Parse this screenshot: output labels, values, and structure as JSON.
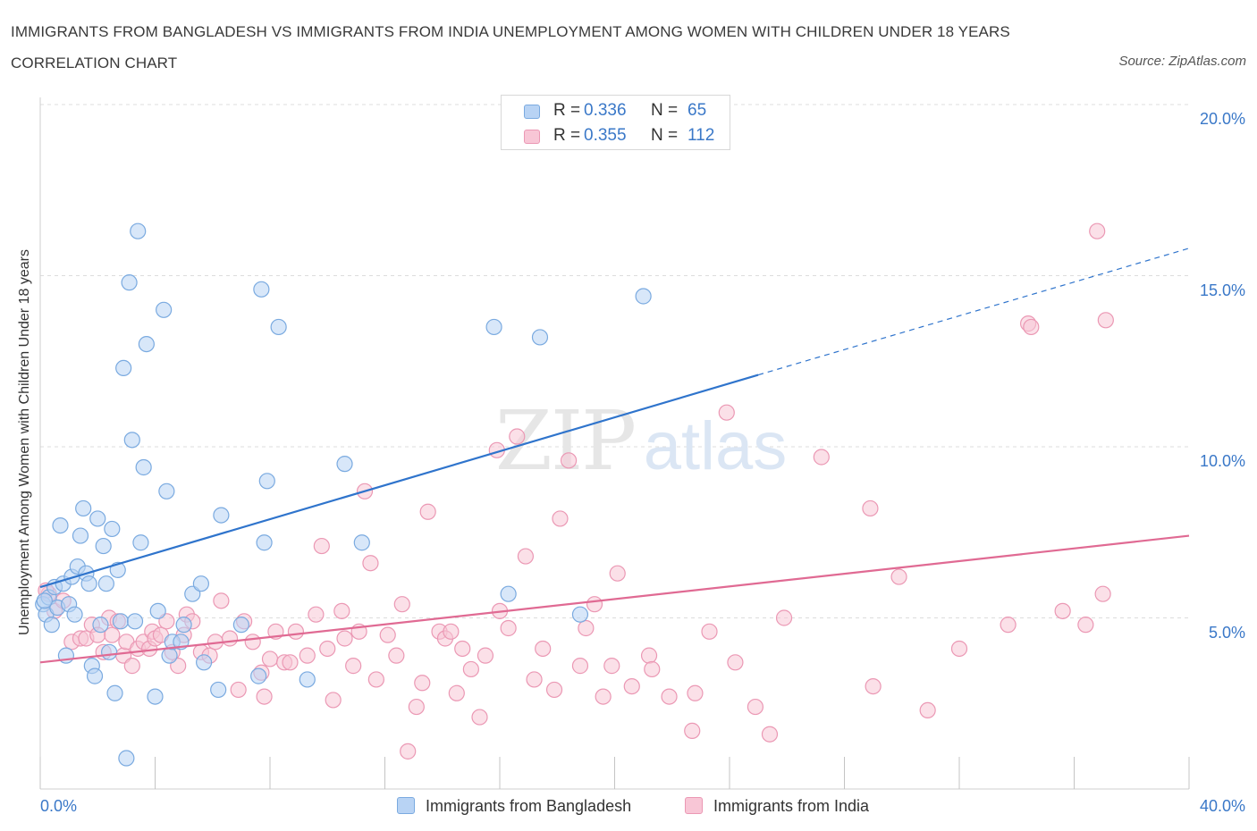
{
  "title": "IMMIGRANTS FROM BANGLADESH VS IMMIGRANTS FROM INDIA UNEMPLOYMENT AMONG WOMEN WITH CHILDREN UNDER 18 YEARS CORRELATION CHART",
  "source": "Source: ZipAtlas.com",
  "watermark": {
    "zip": "ZIP",
    "atlas": "atlas"
  },
  "legend": {
    "rows": [
      {
        "r_label": "R =",
        "r_value": "0.336",
        "n_label": "N =",
        "n_value": "65"
      },
      {
        "r_label": "R =",
        "r_value": "0.355",
        "n_label": "N =",
        "n_value": "112"
      }
    ]
  },
  "colors": {
    "bangladesh_fill": "#b8d3f4",
    "bangladesh_stroke": "#7aaae0",
    "bangladesh_line": "#2f74cc",
    "india_fill": "#f8c6d6",
    "india_stroke": "#eb98b4",
    "india_line": "#e06a93",
    "value_text": "#3a78c8",
    "grid": "#dcdcdc"
  },
  "chart_data": {
    "type": "scatter",
    "xlabel": "",
    "ylabel": "Unemployment Among Women with Children Under 18 years",
    "xlim": [
      0,
      40
    ],
    "ylim": [
      0,
      20
    ],
    "x_tick_labels": [
      "0.0%",
      "40.0%"
    ],
    "y_ticks": [
      5,
      10,
      15,
      20
    ],
    "y_tick_labels": [
      "5.0%",
      "10.0%",
      "15.0%",
      "20.0%"
    ],
    "grid": "horizontal dashed",
    "legend_placement": "top-center",
    "series": [
      {
        "name": "Immigrants from Bangladesh",
        "R": 0.336,
        "N": 65,
        "trend": {
          "x0": 0,
          "y0": 5.9,
          "x1": 25,
          "y1": 12.1,
          "dashed_to_x": 40,
          "dashed_to_y": 15.8
        },
        "points": [
          [
            0.1,
            5.4
          ],
          [
            0.2,
            5.1
          ],
          [
            0.3,
            5.6
          ],
          [
            0.4,
            4.8
          ],
          [
            0.5,
            5.9
          ],
          [
            0.6,
            5.3
          ],
          [
            0.7,
            7.7
          ],
          [
            0.8,
            6.0
          ],
          [
            0.9,
            3.9
          ],
          [
            1.0,
            5.4
          ],
          [
            1.1,
            6.2
          ],
          [
            1.2,
            5.1
          ],
          [
            1.3,
            6.5
          ],
          [
            1.4,
            7.4
          ],
          [
            1.5,
            8.2
          ],
          [
            1.6,
            6.3
          ],
          [
            1.7,
            6.0
          ],
          [
            1.8,
            3.6
          ],
          [
            1.9,
            3.3
          ],
          [
            2.0,
            7.9
          ],
          [
            2.1,
            4.8
          ],
          [
            2.2,
            7.1
          ],
          [
            2.3,
            6.0
          ],
          [
            2.4,
            4.0
          ],
          [
            2.5,
            7.6
          ],
          [
            2.6,
            2.8
          ],
          [
            2.7,
            6.4
          ],
          [
            2.8,
            4.9
          ],
          [
            2.9,
            12.3
          ],
          [
            3.0,
            0.9
          ],
          [
            3.1,
            14.8
          ],
          [
            3.2,
            10.2
          ],
          [
            3.3,
            4.9
          ],
          [
            3.4,
            16.3
          ],
          [
            3.5,
            7.2
          ],
          [
            3.6,
            9.4
          ],
          [
            3.7,
            13.0
          ],
          [
            4.0,
            2.7
          ],
          [
            4.1,
            5.2
          ],
          [
            4.3,
            14.0
          ],
          [
            4.4,
            8.7
          ],
          [
            4.5,
            3.9
          ],
          [
            4.6,
            4.3
          ],
          [
            5.0,
            4.8
          ],
          [
            5.3,
            5.7
          ],
          [
            5.6,
            6.0
          ],
          [
            5.7,
            3.7
          ],
          [
            6.2,
            2.9
          ],
          [
            6.3,
            8.0
          ],
          [
            7.0,
            4.8
          ],
          [
            7.6,
            3.3
          ],
          [
            7.7,
            14.6
          ],
          [
            7.8,
            7.2
          ],
          [
            7.9,
            9.0
          ],
          [
            8.3,
            13.5
          ],
          [
            9.3,
            3.2
          ],
          [
            10.6,
            9.5
          ],
          [
            11.2,
            7.2
          ],
          [
            15.8,
            13.5
          ],
          [
            16.3,
            5.7
          ],
          [
            17.4,
            13.2
          ],
          [
            18.8,
            5.1
          ],
          [
            21.0,
            14.4
          ],
          [
            4.9,
            4.3
          ],
          [
            0.15,
            5.5
          ]
        ]
      },
      {
        "name": "Immigrants from India",
        "R": 0.355,
        "N": 112,
        "trend": {
          "x0": 0,
          "y0": 3.7,
          "x1": 40,
          "y1": 7.4
        },
        "points": [
          [
            0.3,
            5.7
          ],
          [
            0.5,
            5.2
          ],
          [
            0.8,
            5.5
          ],
          [
            1.1,
            4.3
          ],
          [
            1.4,
            4.4
          ],
          [
            1.6,
            4.4
          ],
          [
            1.8,
            4.8
          ],
          [
            2.0,
            4.5
          ],
          [
            2.2,
            4.0
          ],
          [
            2.4,
            5.0
          ],
          [
            2.5,
            4.5
          ],
          [
            2.7,
            4.9
          ],
          [
            2.9,
            3.9
          ],
          [
            3.0,
            4.3
          ],
          [
            3.2,
            3.6
          ],
          [
            3.4,
            4.1
          ],
          [
            3.6,
            4.3
          ],
          [
            3.8,
            4.1
          ],
          [
            3.9,
            4.6
          ],
          [
            4.0,
            4.4
          ],
          [
            4.2,
            4.5
          ],
          [
            4.4,
            4.9
          ],
          [
            4.6,
            4.0
          ],
          [
            4.8,
            3.6
          ],
          [
            5.0,
            4.5
          ],
          [
            5.1,
            5.1
          ],
          [
            5.3,
            4.9
          ],
          [
            5.6,
            4.0
          ],
          [
            5.9,
            3.9
          ],
          [
            6.1,
            4.3
          ],
          [
            6.3,
            5.5
          ],
          [
            6.6,
            4.4
          ],
          [
            6.9,
            2.9
          ],
          [
            7.1,
            4.9
          ],
          [
            7.4,
            4.3
          ],
          [
            7.7,
            3.4
          ],
          [
            7.8,
            2.7
          ],
          [
            8.0,
            3.8
          ],
          [
            8.2,
            4.6
          ],
          [
            8.5,
            3.7
          ],
          [
            8.7,
            3.7
          ],
          [
            8.9,
            4.6
          ],
          [
            9.3,
            3.9
          ],
          [
            9.6,
            5.1
          ],
          [
            9.8,
            7.1
          ],
          [
            10.0,
            4.1
          ],
          [
            10.2,
            2.6
          ],
          [
            10.5,
            5.2
          ],
          [
            10.6,
            4.4
          ],
          [
            10.9,
            3.6
          ],
          [
            11.1,
            4.6
          ],
          [
            11.3,
            8.7
          ],
          [
            11.5,
            6.6
          ],
          [
            11.7,
            3.2
          ],
          [
            12.1,
            4.5
          ],
          [
            12.4,
            3.9
          ],
          [
            12.6,
            5.4
          ],
          [
            12.8,
            1.1
          ],
          [
            13.1,
            2.4
          ],
          [
            13.3,
            3.1
          ],
          [
            13.5,
            8.1
          ],
          [
            13.9,
            4.6
          ],
          [
            14.1,
            4.4
          ],
          [
            14.3,
            4.6
          ],
          [
            14.5,
            2.8
          ],
          [
            14.7,
            4.1
          ],
          [
            15.0,
            3.5
          ],
          [
            15.3,
            2.1
          ],
          [
            15.5,
            3.9
          ],
          [
            15.9,
            9.9
          ],
          [
            16.0,
            5.2
          ],
          [
            16.3,
            4.7
          ],
          [
            16.6,
            10.3
          ],
          [
            16.9,
            6.8
          ],
          [
            17.2,
            3.2
          ],
          [
            17.5,
            4.1
          ],
          [
            17.9,
            2.9
          ],
          [
            18.1,
            7.9
          ],
          [
            18.4,
            9.6
          ],
          [
            18.8,
            3.6
          ],
          [
            19.0,
            4.7
          ],
          [
            19.3,
            5.4
          ],
          [
            19.6,
            2.7
          ],
          [
            19.9,
            3.6
          ],
          [
            20.1,
            6.3
          ],
          [
            20.6,
            3.0
          ],
          [
            21.2,
            3.9
          ],
          [
            21.3,
            3.5
          ],
          [
            21.9,
            2.7
          ],
          [
            22.7,
            1.7
          ],
          [
            22.8,
            2.8
          ],
          [
            23.3,
            4.6
          ],
          [
            23.9,
            11.0
          ],
          [
            24.2,
            3.7
          ],
          [
            24.9,
            2.4
          ],
          [
            25.4,
            1.6
          ],
          [
            25.9,
            5.0
          ],
          [
            27.2,
            9.7
          ],
          [
            28.9,
            8.2
          ],
          [
            29.0,
            3.0
          ],
          [
            29.9,
            6.2
          ],
          [
            30.9,
            2.3
          ],
          [
            32.0,
            4.1
          ],
          [
            33.7,
            4.8
          ],
          [
            34.4,
            13.6
          ],
          [
            34.5,
            13.5
          ],
          [
            35.6,
            5.2
          ],
          [
            36.4,
            4.8
          ],
          [
            36.8,
            16.3
          ],
          [
            37.1,
            13.7
          ],
          [
            37.0,
            5.7
          ],
          [
            0.2,
            5.8
          ]
        ]
      }
    ]
  },
  "bottom_legend": [
    "Immigrants from Bangladesh",
    "Immigrants from India"
  ]
}
